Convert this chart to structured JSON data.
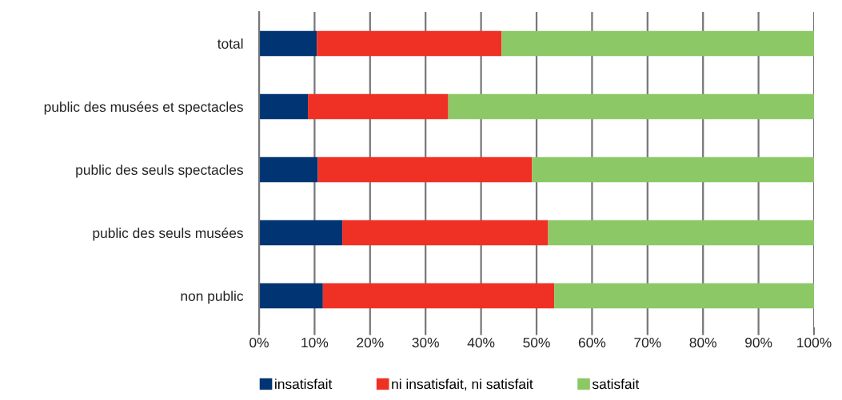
{
  "chart_data": {
    "type": "bar",
    "orientation": "horizontal",
    "stacked": true,
    "categories": [
      "total",
      "public des musées et spectacles",
      "public des seuls spectacles",
      "public des seuls musées",
      "non public"
    ],
    "series": [
      {
        "name": "insatisfait",
        "color": "#003473",
        "values": [
          10.4,
          8.8,
          10.6,
          15.0,
          11.5
        ]
      },
      {
        "name": "ni insatisfait, ni satisfait",
        "color": "#ee3124",
        "values": [
          33.3,
          25.3,
          38.6,
          37.1,
          41.7
        ]
      },
      {
        "name": "satisfait",
        "color": "#8cc866",
        "values": [
          56.3,
          65.9,
          50.8,
          47.9,
          46.8
        ]
      }
    ],
    "xlim": [
      0,
      100
    ],
    "xticks": [
      {
        "value": 0,
        "label": "0%"
      },
      {
        "value": 10,
        "label": "10%"
      },
      {
        "value": 20,
        "label": "20%"
      },
      {
        "value": 30,
        "label": "30%"
      },
      {
        "value": 40,
        "label": "40%"
      },
      {
        "value": 50,
        "label": "50%"
      },
      {
        "value": 60,
        "label": "60%"
      },
      {
        "value": 70,
        "label": "70%"
      },
      {
        "value": 80,
        "label": "80%"
      },
      {
        "value": 90,
        "label": "90%"
      },
      {
        "value": 100,
        "label": "100%"
      }
    ],
    "grid": "x",
    "legend": "bottom"
  }
}
